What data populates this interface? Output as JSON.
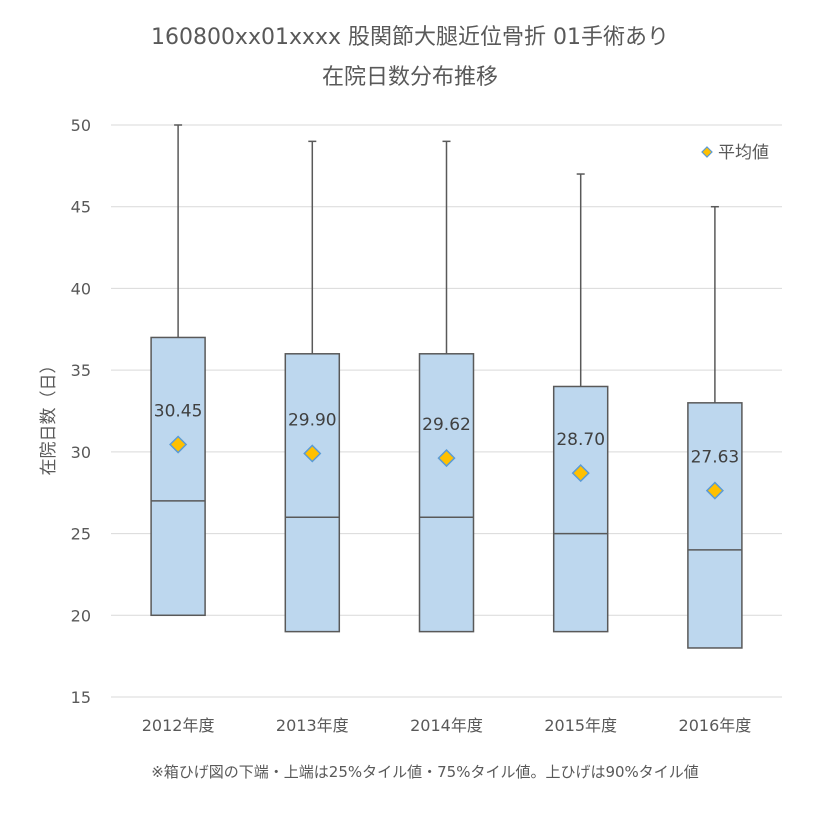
{
  "chart_data": {
    "type": "box",
    "title_line1": "160800xx01xxxx 股関節大腿近位骨折 01手術あり",
    "title_line2": "在院日数分布推移",
    "ylabel": "在院日数（日）",
    "xlabel": "",
    "ylim": [
      15,
      50
    ],
    "yticks": [
      15,
      20,
      25,
      30,
      35,
      40,
      45,
      50
    ],
    "grid": true,
    "legend": {
      "label": "平均値",
      "position": "top-right"
    },
    "categories": [
      "2012年度",
      "2013年度",
      "2014年度",
      "2015年度",
      "2016年度"
    ],
    "boxes": [
      {
        "category": "2012年度",
        "q1": 20,
        "median": 27,
        "q3": 37,
        "whisker_high": 50,
        "mean": 30.45,
        "mean_label": "30.45"
      },
      {
        "category": "2013年度",
        "q1": 19,
        "median": 26,
        "q3": 36,
        "whisker_high": 49,
        "mean": 29.9,
        "mean_label": "29.90"
      },
      {
        "category": "2014年度",
        "q1": 19,
        "median": 26,
        "q3": 36,
        "whisker_high": 49,
        "mean": 29.62,
        "mean_label": "29.62"
      },
      {
        "category": "2015年度",
        "q1": 19,
        "median": 25,
        "q3": 34,
        "whisker_high": 47,
        "mean": 28.7,
        "mean_label": "28.70"
      },
      {
        "category": "2016年度",
        "q1": 18,
        "median": 24,
        "q3": 33,
        "whisker_high": 45,
        "mean": 27.63,
        "mean_label": "27.63"
      }
    ],
    "colors": {
      "box_fill": "#BDD7EE",
      "box_stroke": "#595959",
      "mean_fill": "#FFC000",
      "mean_stroke": "#5B9BD5",
      "grid": "#D9D9D9"
    },
    "footnote": "※箱ひげ図の下端・上端は25%タイル値・75%タイル値。上ひげは90%タイル値"
  }
}
